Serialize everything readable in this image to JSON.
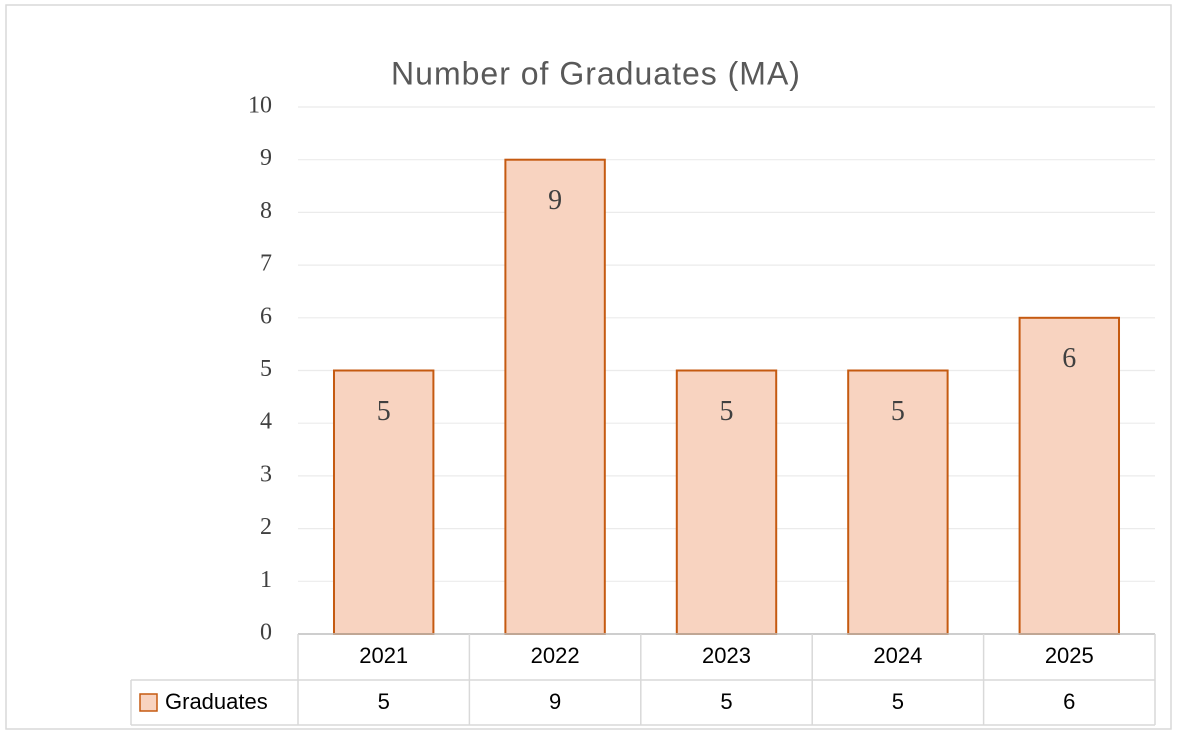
{
  "chart_data": {
    "type": "bar",
    "title": "Number of Graduates (MA)",
    "categories": [
      "2021",
      "2022",
      "2023",
      "2024",
      "2025"
    ],
    "series": [
      {
        "name": "Graduates",
        "color": "#f8d3c0",
        "edgecolor": "#c55a11",
        "values": [
          5,
          9,
          5,
          5,
          6
        ]
      }
    ],
    "ylim": [
      0,
      10
    ],
    "yticks": [
      0,
      1,
      2,
      3,
      4,
      5,
      6,
      7,
      8,
      9,
      10
    ],
    "grid": true,
    "data_labels": true,
    "data_table": true
  }
}
